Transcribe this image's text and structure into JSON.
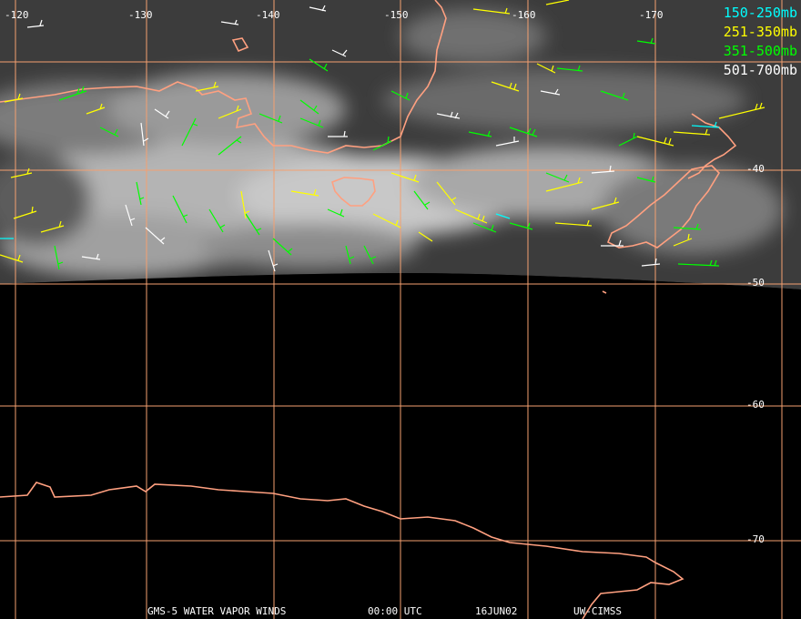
{
  "legend": [
    {
      "label": "150-250mb",
      "color": "#00ffff"
    },
    {
      "label": "251-350mb",
      "color": "#ffff00"
    },
    {
      "label": "351-500mb",
      "color": "#00ff00"
    },
    {
      "label": "501-700mb",
      "color": "#ffffff"
    }
  ],
  "longitude_labels": [
    "-120",
    "-130",
    "-140",
    "-150",
    "-160",
    "-170"
  ],
  "latitude_labels": [
    "-40",
    "-50",
    "-60",
    "-70"
  ],
  "footer": {
    "product": "GMS-5 WATER VAPOR WINDS",
    "time": "00:00 UTC",
    "date": "16JUN02",
    "source": "UW-CIMSS"
  },
  "colors": {
    "grid": "#f4a070",
    "coastline": "#ffa080",
    "background": "#000000"
  }
}
